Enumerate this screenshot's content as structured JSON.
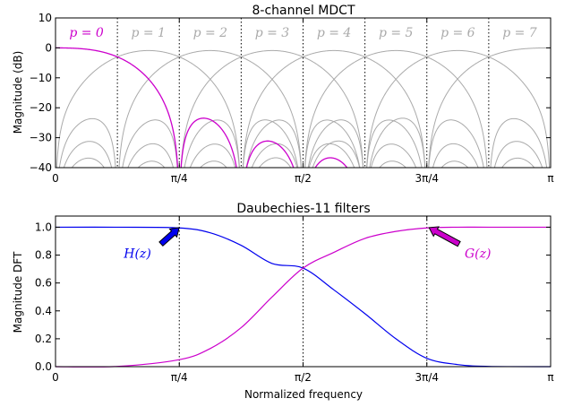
{
  "chart_data": [
    {
      "type": "line",
      "title": "8-channel MDCT",
      "xlabel": "",
      "ylabel": "Magnitude (dB)",
      "xlim": [
        0,
        3.14159265
      ],
      "ylim": [
        -40,
        10
      ],
      "y_ticks": [
        10,
        0,
        -10,
        -20,
        -30,
        -40
      ],
      "y_tick_labels": [
        "10",
        "0",
        "−10",
        "−20",
        "−30",
        "−40"
      ],
      "x_ticks": [
        0,
        0.785398,
        1.570796,
        2.356194,
        3.141593
      ],
      "x_tick_labels": [
        "0",
        "π/4",
        "π/2",
        "3π/4",
        "π"
      ],
      "grid": false,
      "channel_separators": [
        0.392699,
        0.785398,
        1.178097,
        1.570796,
        1.963495,
        2.356194,
        2.748894
      ],
      "channel_labels": [
        "p = 0",
        "p = 1",
        "p = 2",
        "p = 3",
        "p = 4",
        "p = 5",
        "p = 6",
        "p = 7"
      ],
      "highlighted_channel": 0,
      "highlight_color": "#cc00cc",
      "other_color": "#aaaaaa"
    },
    {
      "type": "line",
      "title": "Daubechies-11 filters",
      "xlabel": "Normalized frequency",
      "ylabel": "Magnitude DFT",
      "xlim": [
        0,
        3.14159265
      ],
      "ylim": [
        0,
        1.08
      ],
      "y_ticks": [
        0,
        0.2,
        0.4,
        0.6,
        0.8,
        1.0
      ],
      "y_tick_labels": [
        "0.0",
        "0.2",
        "0.4",
        "0.6",
        "0.8",
        "1.0"
      ],
      "x_ticks": [
        0,
        0.785398,
        1.570796,
        2.356194,
        3.141593
      ],
      "x_tick_labels": [
        "0",
        "π/4",
        "π/2",
        "3π/4",
        "π"
      ],
      "grid": false,
      "vlines": [
        0.785398,
        1.570796,
        2.356194
      ],
      "series": [
        {
          "name": "H(z)",
          "color": "#0000ee",
          "x": [
            0,
            0.3927,
            0.7854,
            0.9817,
            1.1781,
            1.3744,
            1.5708,
            1.7671,
            1.9635,
            2.1598,
            2.3562,
            2.5525,
            2.7489,
            3.1416
          ],
          "y": [
            1.0,
            1.0,
            0.995,
            0.96,
            0.87,
            0.74,
            0.707,
            0.55,
            0.38,
            0.2,
            0.06,
            0.015,
            0.002,
            0.0
          ]
        },
        {
          "name": "G(z)",
          "color": "#cc00cc",
          "x": [
            0,
            0.3927,
            0.7854,
            0.9817,
            1.1781,
            1.3744,
            1.5708,
            1.7671,
            1.9635,
            2.1598,
            2.3562,
            2.5525,
            2.7489,
            3.1416
          ],
          "y": [
            0.0,
            0.002,
            0.05,
            0.13,
            0.28,
            0.5,
            0.707,
            0.82,
            0.92,
            0.97,
            0.995,
            1.0,
            1.0,
            1.0
          ]
        }
      ],
      "annotations": [
        {
          "text": "H(z)",
          "color": "#0000ee"
        },
        {
          "text": "G(z)",
          "color": "#cc00cc"
        }
      ]
    }
  ]
}
